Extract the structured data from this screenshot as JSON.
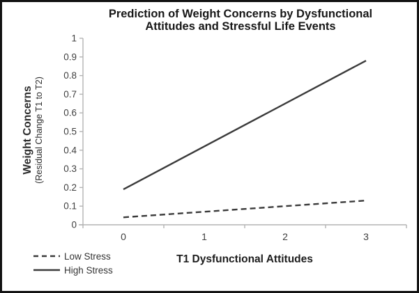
{
  "chart_data": {
    "type": "line",
    "title": "Prediction of Weight Concerns by Dysfunctional Attitudes and Stressful Life Events",
    "title_lines": [
      "Prediction of Weight Concerns by Dysfunctional",
      "Attitudes and Stressful Life Events"
    ],
    "xlabel": "T1 Dysfunctional Attitudes",
    "ylabel": "Weight Concerns",
    "ylabel_sub": "(Residual Change T1 to T2)",
    "categories": [
      "0",
      "1",
      "2",
      "3"
    ],
    "ylim": [
      0,
      1
    ],
    "ytick_step": 0.1,
    "yticks": [
      "0",
      "0.1",
      "0.2",
      "0.3",
      "0.4",
      "0.5",
      "0.6",
      "0.7",
      "0.8",
      "0.9",
      "1"
    ],
    "series": [
      {
        "name": "Low Stress",
        "line_style": "dashed",
        "x": [
          0,
          3
        ],
        "values": [
          0.04,
          0.13
        ]
      },
      {
        "name": "High Stress",
        "line_style": "solid",
        "x": [
          0,
          3
        ],
        "values": [
          0.19,
          0.88
        ]
      }
    ],
    "legend_position": "bottom-left",
    "grid": false,
    "colors": {
      "line": "#3a3a3a",
      "axis": "#b3b3b3",
      "text": "#3f3f3f",
      "title": "#171717"
    }
  }
}
